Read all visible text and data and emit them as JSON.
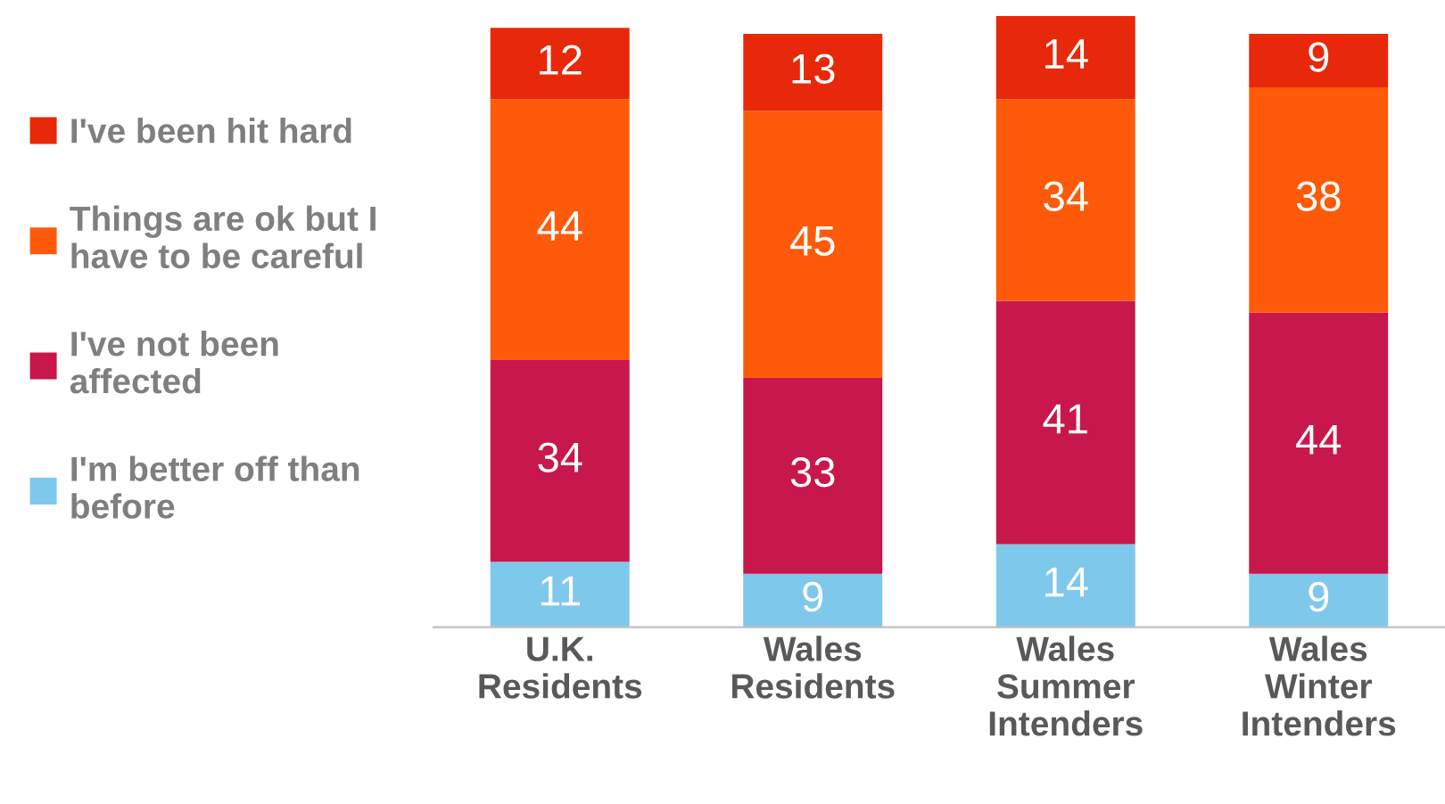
{
  "chart_data": {
    "type": "bar",
    "stacked": true,
    "data_labels": true,
    "legend": "left",
    "categories": [
      "U.K.\nResidents",
      "Wales\nResidents",
      "Wales\nSummer\nIntenders",
      "Wales\nWinter\nIntenders"
    ],
    "series": [
      {
        "name": "I'm better off than before",
        "color": "#7ec8ec",
        "values": [
          11,
          9,
          14,
          9
        ]
      },
      {
        "name": "I've not been affected",
        "color": "#c8174a",
        "values": [
          34,
          33,
          41,
          44
        ]
      },
      {
        "name": "Things are ok but I have to be careful",
        "color": "#ff5a0a",
        "values": [
          44,
          45,
          34,
          38
        ]
      },
      {
        "name": "I've been hit hard",
        "color": "#e8280a",
        "values": [
          12,
          13,
          14,
          9
        ]
      }
    ]
  }
}
